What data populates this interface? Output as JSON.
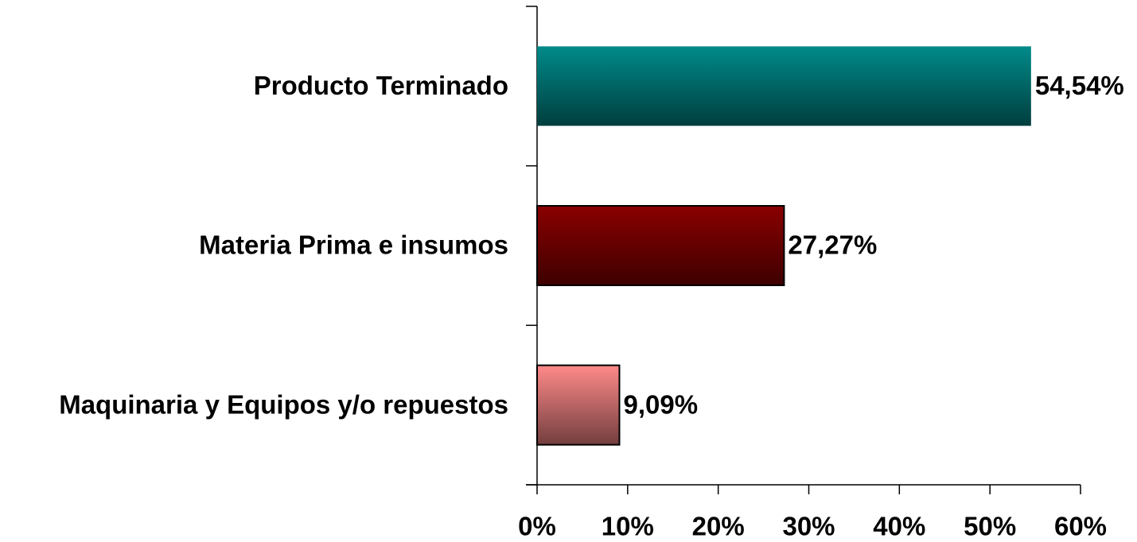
{
  "chart_data": {
    "type": "hbar",
    "categories": [
      "Producto Terminado",
      "Materia Prima e insumos",
      "Maquinaria y Equipos y/o repuestos"
    ],
    "values": [
      54.54,
      27.27,
      9.09
    ],
    "value_labels": [
      "54,54%",
      "27,27%",
      "9,09%"
    ],
    "colors": [
      "#008a8a",
      "#8a0000",
      "#ff8a8a"
    ],
    "xlim": [
      0,
      60
    ],
    "xticks": [
      {
        "value": 0,
        "label": "0%"
      },
      {
        "value": 10,
        "label": "10%"
      },
      {
        "value": 20,
        "label": "20%"
      },
      {
        "value": 30,
        "label": "30%"
      },
      {
        "value": 40,
        "label": "40%"
      },
      {
        "value": 50,
        "label": "50%"
      },
      {
        "value": 60,
        "label": "60%"
      }
    ]
  }
}
